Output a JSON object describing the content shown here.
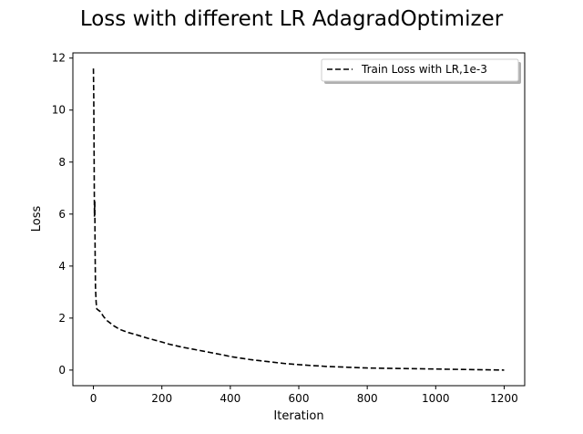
{
  "chart_data": {
    "type": "line",
    "title": "Loss with different LR AdagradOptimizer",
    "xlabel": "Iteration",
    "ylabel": "Loss",
    "xlim": [
      -60,
      1260
    ],
    "ylim": [
      -0.6,
      12.2
    ],
    "xticks": [
      0,
      200,
      400,
      600,
      800,
      1000,
      1200
    ],
    "yticks": [
      0,
      2,
      4,
      6,
      8,
      10,
      12
    ],
    "xtick_labels": [
      "0",
      "200",
      "400",
      "600",
      "800",
      "1000",
      "1200"
    ],
    "ytick_labels": [
      "0",
      "2",
      "4",
      "6",
      "8",
      "10",
      "12"
    ],
    "grid": false,
    "legend_position": "top-right",
    "series": [
      {
        "name": "Train Loss with LR,1e-3",
        "color": "#000000",
        "line_style": "dashed",
        "x": [
          0,
          1,
          2,
          3,
          4,
          5,
          6,
          8,
          10,
          15,
          20,
          25,
          30,
          40,
          50,
          60,
          70,
          80,
          90,
          100,
          120,
          140,
          160,
          180,
          200,
          220,
          240,
          260,
          280,
          300,
          320,
          340,
          360,
          380,
          400,
          420,
          440,
          460,
          480,
          500,
          520,
          540,
          560,
          580,
          600,
          620,
          640,
          660,
          680,
          700,
          720,
          740,
          760,
          780,
          800,
          850,
          900,
          950,
          1000,
          1050,
          1100,
          1150,
          1200
        ],
        "y": [
          11.6,
          10.5,
          8.3,
          5.9,
          6.5,
          4.5,
          3.2,
          2.6,
          2.35,
          2.3,
          2.25,
          2.15,
          2.05,
          1.9,
          1.8,
          1.7,
          1.62,
          1.55,
          1.5,
          1.45,
          1.38,
          1.3,
          1.22,
          1.15,
          1.08,
          1.0,
          0.94,
          0.88,
          0.83,
          0.78,
          0.73,
          0.68,
          0.63,
          0.58,
          0.52,
          0.48,
          0.44,
          0.4,
          0.37,
          0.34,
          0.31,
          0.28,
          0.25,
          0.23,
          0.21,
          0.19,
          0.17,
          0.16,
          0.14,
          0.13,
          0.12,
          0.11,
          0.1,
          0.09,
          0.08,
          0.07,
          0.06,
          0.05,
          0.04,
          0.03,
          0.02,
          0.01,
          0.0
        ]
      }
    ]
  }
}
